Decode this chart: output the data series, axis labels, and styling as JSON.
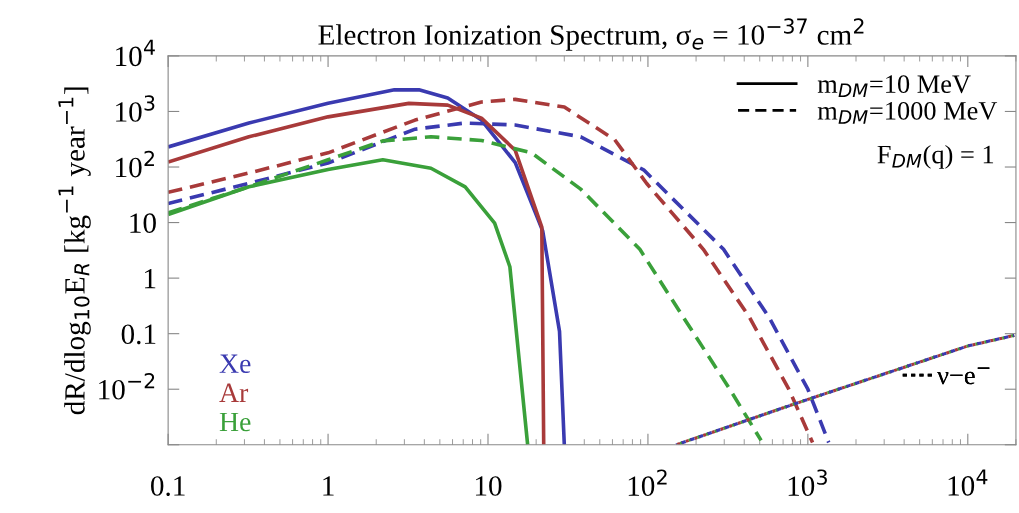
{
  "chart_data": {
    "type": "line",
    "title": "Electron Ionization Spectrum, σ$_{e}$ = 10$^{−37}$ cm$^{2}$",
    "ylabel": "dR/dlog$_{10}$E$_{R}$ [kg$^{−1}$ year$^{−1}$]",
    "log": "xy",
    "xlim": [
      0.1,
      20000
    ],
    "ylim": [
      0.001,
      10000
    ],
    "xticks": [
      0.1,
      1,
      10,
      {
        "value": 100,
        "label": "10$^{2}$"
      },
      {
        "value": 1000,
        "label": "10$^{3}$"
      },
      {
        "value": 10000,
        "label": "10$^{4}$"
      }
    ],
    "yticks": [
      {
        "value": 0.001,
        "label": null
      },
      {
        "value": 0.01,
        "label": "10$^{−2}$"
      },
      0.1,
      1,
      10,
      {
        "value": 100,
        "label": "10$^{2}$"
      },
      {
        "value": 1000,
        "label": "10$^{3}$"
      },
      {
        "value": 10000,
        "label": "10$^{4}$"
      }
    ],
    "grid": false,
    "legend": "bottom left",
    "annotations": [
      "m$_{DM}$=10 MeV",
      "m$_{DM}$=1000 MeV",
      "F$_{DM}$(q) = 1",
      "ν−e$^{−}$"
    ],
    "series": [
      {
        "name": "Xe",
        "color": "#3a3ab0",
        "line_style": "solid",
        "x": [
          0.1,
          0.32,
          1,
          2.6,
          3.7,
          5.6,
          9.1,
          14.8,
          22,
          28,
          30
        ],
        "values": [
          230,
          620,
          1400,
          2450,
          2450,
          1750,
          700,
          120,
          7,
          0.11,
          0.001
        ]
      },
      {
        "name": "Ar",
        "color": "#a83a3a",
        "line_style": "solid",
        "x": [
          0.1,
          0.32,
          1,
          3.2,
          5.6,
          9.1,
          14.8,
          21.7,
          22.3
        ],
        "values": [
          123,
          350,
          800,
          1400,
          1300,
          760,
          200,
          8.3,
          0.001
        ]
      },
      {
        "name": "He",
        "color": "#3aa03a",
        "line_style": "solid",
        "x": [
          0.1,
          0.32,
          1,
          2.2,
          4.4,
          7.2,
          11,
          13.7,
          17.7
        ],
        "values": [
          14,
          44,
          90,
          135,
          95,
          44,
          9.8,
          1.6,
          0.001
        ]
      },
      {
        "color": "#3a3ab0",
        "line_style": "dashed",
        "x": [
          0.1,
          0.32,
          1,
          3.5,
          7.2,
          14.8,
          38,
          94,
          297,
          570,
          1000,
          1350
        ],
        "values": [
          22,
          51,
          118,
          480,
          620,
          570,
          350,
          89,
          3.3,
          0.2,
          0.01,
          0.0011
        ]
      },
      {
        "color": "#a83a3a",
        "line_style": "dashed",
        "x": [
          0.1,
          0.32,
          1,
          3.5,
          9.1,
          14.8,
          30,
          62,
          98,
          222,
          430,
          760,
          1070
        ],
        "values": [
          35,
          78,
          180,
          700,
          1480,
          1650,
          1200,
          310,
          51,
          3.3,
          0.2,
          0.01,
          0.0011
        ]
      },
      {
        "color": "#3aa03a",
        "line_style": "dashed",
        "x": [
          0.1,
          0.32,
          1,
          2.2,
          4.4,
          9.1,
          18.7,
          38,
          89,
          166,
          325,
          510
        ],
        "values": [
          15,
          44,
          135,
          295,
          350,
          300,
          180,
          40,
          3.3,
          0.2,
          0.01,
          0.0012
        ]
      },
      {
        "color": "#3aa03a",
        "line_style": "dotted",
        "x": [
          150,
          850,
          10000,
          19500
        ],
        "values": [
          0.001,
          0.0056,
          0.06,
          0.093
        ]
      },
      {
        "color": "#a83a3a",
        "line_style": "dotted",
        "x": [
          150,
          850,
          10000,
          19500
        ],
        "values": [
          0.001,
          0.0056,
          0.06,
          0.093
        ]
      },
      {
        "color": "#3a3ab0",
        "line_style": "dotted",
        "x": [
          150,
          850,
          10000,
          19500
        ],
        "values": [
          0.001,
          0.0056,
          0.06,
          0.093
        ]
      }
    ]
  }
}
